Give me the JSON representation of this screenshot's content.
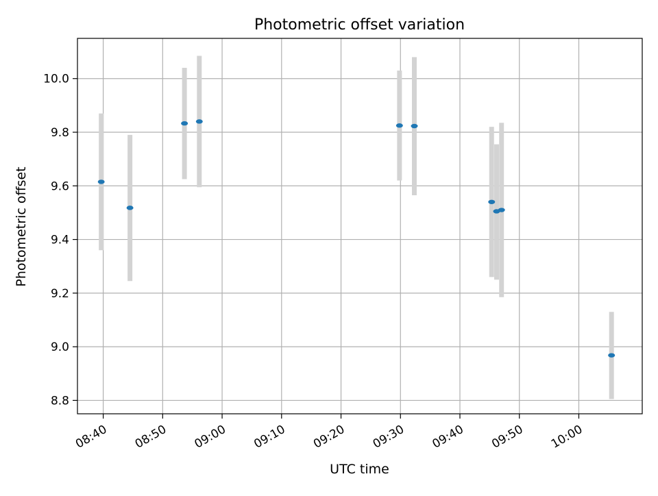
{
  "chart_data": {
    "type": "scatter",
    "title": "Photometric offset variation",
    "xlabel": "UTC time",
    "ylabel": "Photometric offset",
    "xlim": [
      "08:35:40",
      "10:10:40"
    ],
    "ylim": [
      8.75,
      10.15
    ],
    "x_ticks": [
      "08:40",
      "08:50",
      "09:00",
      "09:10",
      "09:20",
      "09:30",
      "09:40",
      "09:50",
      "10:00"
    ],
    "y_ticks": [
      8.8,
      9.0,
      9.2,
      9.4,
      9.6,
      9.8,
      10.0
    ],
    "grid": true,
    "legend": "none",
    "colors": {
      "point": "#1f77b4",
      "errorbar": "#d3d3d3",
      "grid": "#b0b0b0",
      "axes": "#000000"
    },
    "points": [
      {
        "x": "08:39:40",
        "y": 9.615,
        "ymin": 9.36,
        "ymax": 9.87
      },
      {
        "x": "08:44:30",
        "y": 9.518,
        "ymin": 9.245,
        "ymax": 9.79
      },
      {
        "x": "08:53:40",
        "y": 9.833,
        "ymin": 9.625,
        "ymax": 10.04
      },
      {
        "x": "08:56:10",
        "y": 9.84,
        "ymin": 9.595,
        "ymax": 10.085
      },
      {
        "x": "09:29:50",
        "y": 9.825,
        "ymin": 9.62,
        "ymax": 10.03
      },
      {
        "x": "09:32:20",
        "y": 9.823,
        "ymin": 9.565,
        "ymax": 10.08
      },
      {
        "x": "09:45:20",
        "y": 9.54,
        "ymin": 9.26,
        "ymax": 9.82
      },
      {
        "x": "09:46:10",
        "y": 9.505,
        "ymin": 9.25,
        "ymax": 9.755
      },
      {
        "x": "09:47:00",
        "y": 9.51,
        "ymin": 9.185,
        "ymax": 9.835
      },
      {
        "x": "10:05:30",
        "y": 8.968,
        "ymin": 8.805,
        "ymax": 9.13
      }
    ]
  }
}
